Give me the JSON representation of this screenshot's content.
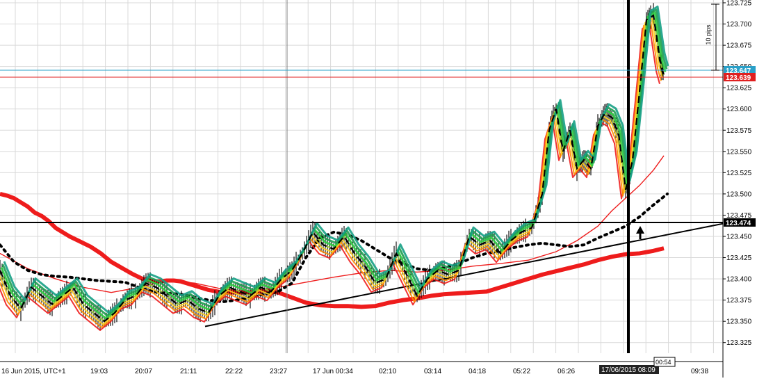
{
  "chart_data": {
    "type": "line",
    "price_axis": {
      "min": 123.3125,
      "max": 123.725,
      "ticks": [
        "123.725",
        "123.700",
        "123.675",
        "123.650",
        "123.625",
        "123.600",
        "123.575",
        "123.550",
        "123.525",
        "123.500",
        "123.475",
        "123.450",
        "123.425",
        "123.400",
        "123.375",
        "123.350",
        "123.325"
      ],
      "position": "right"
    },
    "time_axis": {
      "labels": [
        "16 Jun 2015, UTC+1",
        "19:03",
        "20:07",
        "21:11",
        "22:22",
        "23:27",
        "17 Jun 00:34",
        "02:10",
        "03:14",
        "04:18",
        "05:22",
        "06:26",
        "17/06/2015 08:09",
        "00:54",
        "09:38"
      ]
    },
    "price_markers": [
      {
        "value": "123.647",
        "color": "#2aa0c8"
      },
      {
        "value": "123.639",
        "color": "#e02020"
      },
      {
        "value": "123.474",
        "color": "#000000"
      }
    ],
    "annotations": {
      "range_label": "10 pips"
    },
    "grid": true,
    "colors": {
      "grid": "#d9d9d9",
      "slow_ma": "#ee1c1c",
      "mid_ma": "#ee1c1c",
      "dotted_ma": "#000000",
      "trendline": "#000000",
      "bid_line": "#2aa0c8",
      "ask_line": "#e02020"
    },
    "series": [
      {
        "color": "#ee1c1c",
        "x": [
          0,
          10,
          20,
          30,
          40,
          50,
          60,
          70,
          80,
          90,
          100,
          115,
          130,
          145,
          160,
          175,
          190,
          205,
          220,
          230,
          240,
          250,
          260,
          280,
          300,
          320,
          340,
          360,
          380,
          400,
          420,
          440,
          460,
          480,
          500,
          520,
          540,
          560,
          580,
          600,
          620,
          640,
          660,
          680,
          700,
          720,
          740,
          760,
          780,
          800,
          820,
          840,
          860,
          880,
          900,
          920,
          940,
          955
        ],
        "y": [
          123.5,
          123.498,
          123.495,
          123.49,
          123.485,
          123.478,
          123.474,
          123.468,
          123.46,
          123.455,
          123.45,
          123.444,
          123.438,
          123.43,
          123.42,
          123.413,
          123.406,
          123.4,
          123.397,
          123.397,
          123.398,
          123.398,
          123.397,
          123.392,
          123.387,
          123.384,
          123.384,
          123.384,
          123.386,
          123.384,
          123.378,
          123.372,
          123.369,
          123.368,
          123.368,
          123.367,
          123.368,
          123.372,
          123.375,
          123.377,
          123.38,
          123.382,
          123.383,
          123.384,
          123.385,
          123.39,
          123.395,
          123.4,
          123.405,
          123.409,
          123.413,
          123.417,
          123.422,
          123.426,
          123.429,
          123.43,
          123.433,
          123.436
        ]
      },
      {
        "color": "#ee1c1c",
        "x": [
          0,
          40,
          80,
          120,
          160,
          200,
          240,
          280,
          320,
          360,
          400,
          440,
          480,
          520,
          560,
          600,
          640,
          680,
          720,
          760,
          800,
          830,
          860,
          880,
          900,
          920,
          940,
          955
        ],
        "y": [
          123.43,
          123.412,
          123.4,
          123.39,
          123.384,
          123.39,
          123.398,
          123.395,
          123.388,
          123.385,
          123.39,
          123.396,
          123.402,
          123.407,
          123.41,
          123.408,
          123.41,
          123.415,
          123.418,
          123.422,
          123.432,
          123.445,
          123.462,
          123.48,
          123.495,
          123.51,
          123.528,
          123.545
        ]
      },
      {
        "color": "#000000",
        "x": [
          0,
          20,
          40,
          60,
          80,
          100,
          120,
          140,
          160,
          180,
          200,
          220,
          240,
          260,
          280,
          300,
          320,
          340,
          360,
          380,
          400,
          420,
          440,
          460,
          480,
          500,
          520,
          540,
          560,
          580,
          600,
          620,
          640,
          660,
          680,
          700,
          720,
          740,
          760,
          780,
          800,
          820,
          840,
          860,
          880,
          900,
          920,
          940,
          960
        ],
        "y": [
          123.44,
          123.42,
          123.41,
          123.405,
          123.403,
          123.402,
          123.4,
          123.398,
          123.397,
          123.396,
          123.39,
          123.385,
          123.383,
          123.382,
          123.378,
          123.375,
          123.373,
          123.375,
          123.378,
          123.382,
          123.385,
          123.395,
          123.425,
          123.448,
          123.455,
          123.452,
          123.445,
          123.435,
          123.425,
          123.418,
          123.412,
          123.41,
          123.413,
          123.418,
          123.425,
          123.43,
          123.433,
          123.437,
          123.44,
          123.442,
          123.44,
          123.438,
          123.44,
          123.448,
          123.455,
          123.462,
          123.473,
          123.487,
          123.5
        ]
      },
      {
        "color": "#000000",
        "x": [
          295,
          1040
        ],
        "y": [
          123.344,
          123.465
        ]
      }
    ],
    "price_path": {
      "x": [
        0,
        15,
        30,
        45,
        60,
        75,
        90,
        105,
        120,
        135,
        150,
        165,
        180,
        195,
        210,
        225,
        240,
        255,
        270,
        285,
        300,
        315,
        330,
        345,
        360,
        375,
        390,
        405,
        420,
        435,
        450,
        465,
        480,
        495,
        510,
        525,
        540,
        555,
        570,
        585,
        600,
        615,
        630,
        645,
        660,
        675,
        690,
        705,
        720,
        735,
        750,
        765,
        780,
        790,
        800,
        810,
        820,
        830,
        840,
        850,
        860,
        870,
        880,
        890,
        900,
        910,
        920,
        930,
        940,
        950,
        955
      ],
      "y": [
        123.41,
        123.38,
        123.365,
        123.39,
        123.38,
        123.37,
        123.38,
        123.39,
        123.37,
        123.36,
        123.35,
        123.36,
        123.375,
        123.38,
        123.395,
        123.39,
        123.38,
        123.37,
        123.375,
        123.365,
        123.36,
        123.38,
        123.39,
        123.385,
        123.38,
        123.39,
        123.385,
        123.4,
        123.41,
        123.43,
        123.455,
        123.44,
        123.435,
        123.45,
        123.43,
        123.415,
        123.395,
        123.4,
        123.43,
        123.405,
        123.38,
        123.4,
        123.41,
        123.405,
        123.41,
        123.45,
        123.44,
        123.445,
        123.43,
        123.445,
        123.455,
        123.46,
        123.5,
        123.575,
        123.6,
        123.55,
        123.575,
        123.53,
        123.54,
        123.53,
        123.58,
        123.595,
        123.59,
        123.57,
        123.505,
        123.54,
        123.62,
        123.705,
        123.71,
        123.655,
        123.64
      ]
    }
  }
}
